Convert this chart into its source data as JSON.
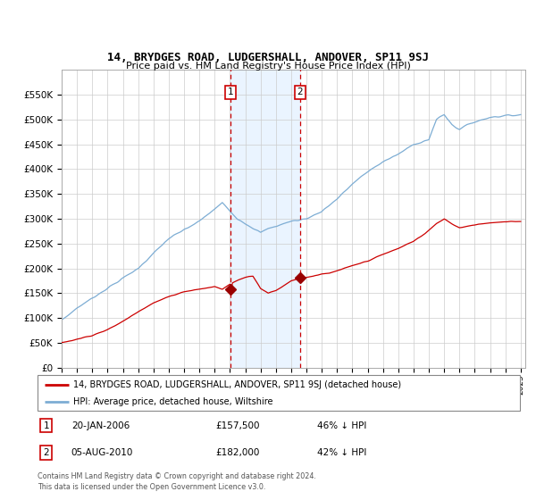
{
  "title": "14, BRYDGES ROAD, LUDGERSHALL, ANDOVER, SP11 9SJ",
  "subtitle": "Price paid vs. HM Land Registry's House Price Index (HPI)",
  "legend_red": "14, BRYDGES ROAD, LUDGERSHALL, ANDOVER, SP11 9SJ (detached house)",
  "legend_blue": "HPI: Average price, detached house, Wiltshire",
  "transaction1_date": "20-JAN-2006",
  "transaction1_price": 157500,
  "transaction1_label": "46% ↓ HPI",
  "transaction2_date": "05-AUG-2010",
  "transaction2_price": 182000,
  "transaction2_label": "42% ↓ HPI",
  "footnote": "Contains HM Land Registry data © Crown copyright and database right 2024.\nThis data is licensed under the Open Government Licence v3.0.",
  "year_start": 1995,
  "year_end": 2025,
  "ylim_max": 600000,
  "ylim_min": 0,
  "yticks": [
    0,
    50000,
    100000,
    150000,
    200000,
    250000,
    300000,
    350000,
    400000,
    450000,
    500000,
    550000
  ],
  "red_color": "#cc0000",
  "blue_color": "#7dadd4",
  "shade_color": "#ddeeff",
  "grid_color": "#cccccc",
  "marker_color": "#990000",
  "t1_year": 2006.055,
  "t2_year": 2010.583
}
